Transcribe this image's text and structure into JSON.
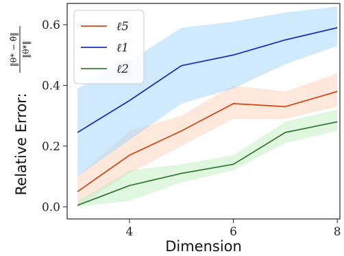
{
  "chart_data": {
    "type": "line",
    "x": [
      3,
      4,
      5,
      6,
      7,
      8
    ],
    "xlim": [
      2.8,
      8.05
    ],
    "ylim": [
      -0.04,
      0.67
    ],
    "xticks": [
      4,
      6,
      8
    ],
    "yticks": [
      0.0,
      0.2,
      0.4,
      0.6
    ],
    "xtick_labels": [
      "4",
      "6",
      "8"
    ],
    "ytick_labels": [
      "0.0",
      "0.2",
      "0.4",
      "0.6"
    ],
    "xlabel": "Dimension",
    "ylabel": "Relative Error:",
    "ylabel_fraction": {
      "numerator": "‖θ* − θ̂‖",
      "denominator": "‖θ*‖"
    },
    "legend_position": "upper left",
    "grid": false,
    "series": [
      {
        "name": "ℓ5",
        "color": "#d04a16",
        "band_color": "#fbd5bd",
        "values": [
          0.05,
          0.17,
          0.25,
          0.34,
          0.33,
          0.38
        ],
        "lower": [
          0.0,
          0.11,
          0.2,
          0.29,
          0.29,
          0.33
        ],
        "upper": [
          0.1,
          0.25,
          0.3,
          0.4,
          0.38,
          0.44
        ]
      },
      {
        "name": "ℓ1",
        "color": "#1a2eb5",
        "band_color": "#a8d8fb",
        "values": [
          0.245,
          0.35,
          0.465,
          0.5,
          0.55,
          0.59
        ],
        "lower": [
          0.1,
          0.22,
          0.34,
          0.39,
          0.47,
          0.53
        ],
        "upper": [
          0.39,
          0.48,
          0.59,
          0.61,
          0.64,
          0.66
        ]
      },
      {
        "name": "ℓ2",
        "color": "#3a7a3a",
        "band_color": "#c4f0c4",
        "values": [
          0.005,
          0.07,
          0.11,
          0.14,
          0.245,
          0.28
        ],
        "lower": [
          0.0,
          0.02,
          0.08,
          0.12,
          0.21,
          0.25
        ],
        "upper": [
          0.02,
          0.12,
          0.14,
          0.17,
          0.28,
          0.32
        ]
      }
    ]
  }
}
